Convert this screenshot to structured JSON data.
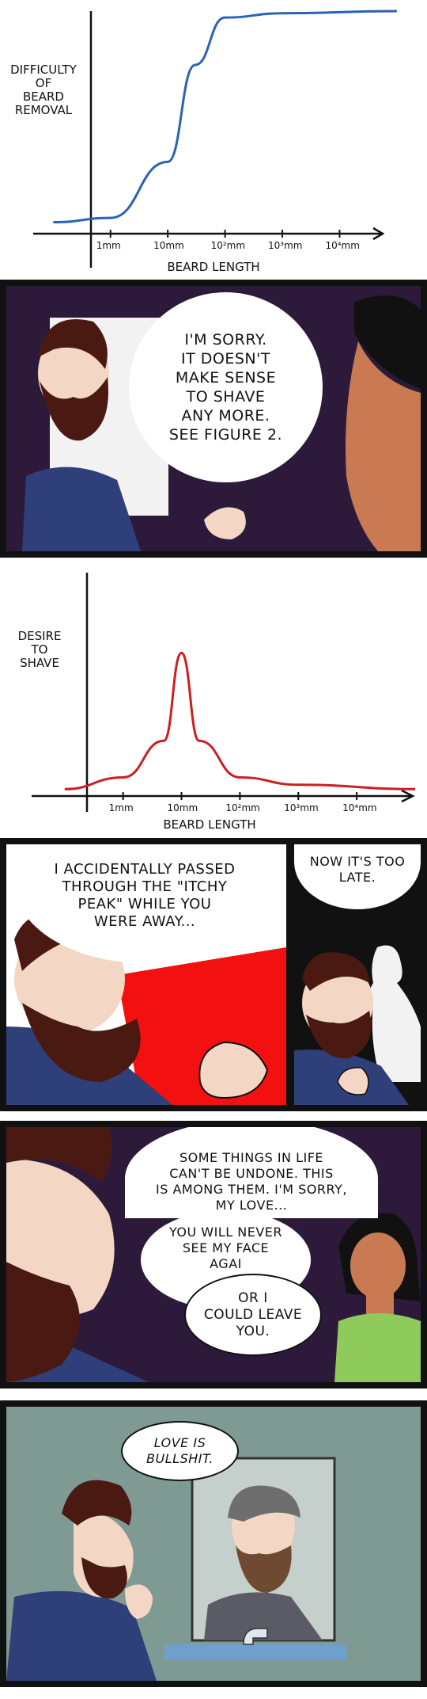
{
  "chart_data": [
    {
      "type": "line",
      "xlabel": "BEARD LENGTH",
      "ylabel": "DIFFICULTY\nOF\nBEARD\nREMOVAL",
      "x_tick_labels": [
        "1mm",
        "10mm",
        "10²mm",
        "10³mm",
        "10⁴mm"
      ],
      "x_scale": "log",
      "series": [
        {
          "color": "#2a62b8",
          "shape": "sigmoid rising from low to high between 10mm and 10²mm",
          "points": [
            [
              0.1,
              0.02
            ],
            [
              1,
              0.04
            ],
            [
              10,
              0.3
            ],
            [
              30,
              0.75
            ],
            [
              100,
              0.97
            ],
            [
              1000,
              0.99
            ],
            [
              100000,
              1.0
            ]
          ]
        }
      ]
    },
    {
      "type": "line",
      "xlabel": "BEARD LENGTH",
      "ylabel": "DESIRE\nTO\nSHAVE",
      "x_tick_labels": [
        "1mm",
        "10mm",
        "10²mm",
        "10³mm",
        "10⁴mm"
      ],
      "x_scale": "log",
      "series": [
        {
          "color": "#cc1f1f",
          "shape": "sharp peak at 10mm",
          "points": [
            [
              0.1,
              0.02
            ],
            [
              1,
              0.1
            ],
            [
              5,
              0.35
            ],
            [
              10,
              0.95
            ],
            [
              20,
              0.35
            ],
            [
              100,
              0.1
            ],
            [
              1000,
              0.05
            ],
            [
              100000,
              0.02
            ]
          ]
        }
      ]
    }
  ],
  "panels": {
    "p1": {
      "bubble": "I'M SORRY.\nIT DOESN'T\nMAKE SENSE\nTO SHAVE\nANY MORE.\nSEE FIGURE 2."
    },
    "p2": {
      "bubble": "I ACCIDENTALLY PASSED\nTHROUGH THE \"ITCHY\nPEAK\" WHILE YOU\nWERE AWAY..."
    },
    "p3": {
      "bubble": "NOW IT'S TOO\nLATE."
    },
    "p4": {
      "bubble_a": "SOME THINGS IN LIFE\nCAN'T BE UNDONE. THIS\nIS AMONG THEM. I'M SORRY,\nMY LOVE...",
      "bubble_b": "YOU WILL NEVER\nSEE MY FACE\nAGAI",
      "bubble_c": "OR I\nCOULD LEAVE\nYOU."
    },
    "p5": {
      "bubble": "LOVE IS\nBULLSHIT."
    }
  },
  "colors": {
    "panel_dark": "#2d1a3b",
    "red_bg": "#f21010",
    "teal_wall": "#7f9a93",
    "shirt_blue": "#2e3f7a",
    "beard_brown": "#4a1a12",
    "skin": "#f3d7c4",
    "woman_skin": "#c97a52",
    "green_top": "#8ecb5b"
  }
}
